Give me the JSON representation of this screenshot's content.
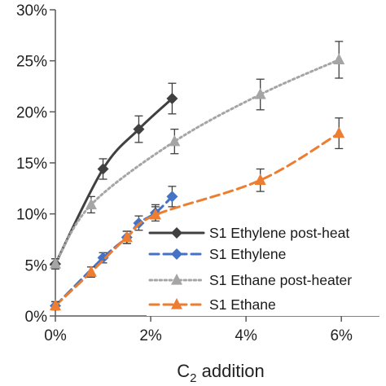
{
  "chart_data": {
    "type": "line",
    "title": "",
    "xlabel": "C",
    "xlabel_subscript": "2",
    "xlabel_suffix": " addition",
    "ylabel": "",
    "xlim": [
      0,
      6.8
    ],
    "ylim": [
      0,
      30
    ],
    "x_ticks": [
      0,
      2,
      4,
      6
    ],
    "x_tick_labels": [
      "0%",
      "2%",
      "4%",
      "6%"
    ],
    "y_ticks": [
      0,
      5,
      10,
      15,
      20,
      25,
      30
    ],
    "y_tick_labels": [
      "0%",
      "5%",
      "10%",
      "15%",
      "20%",
      "25%",
      "30%"
    ],
    "grid": false,
    "legend_position": "right",
    "series": [
      {
        "name": "S1 Ethylene post-heat",
        "color": "#404040",
        "line_style": "solid",
        "marker": "diamond",
        "x": [
          0,
          1.0,
          1.75,
          2.45
        ],
        "y": [
          5.1,
          14.4,
          18.3,
          21.3
        ],
        "err": [
          0.5,
          1.0,
          1.3,
          1.5
        ]
      },
      {
        "name": "S1 Ethylene",
        "color": "#4472c4",
        "line_style": "dashed",
        "marker": "diamond",
        "x": [
          0,
          1.0,
          1.5,
          1.75,
          2.1,
          2.45
        ],
        "y": [
          1.0,
          5.7,
          7.7,
          9.1,
          10.1,
          11.7
        ],
        "err": [
          0.4,
          0.5,
          0.6,
          0.7,
          0.8,
          1.0
        ]
      },
      {
        "name": "S1 Ethane post-heater",
        "color": "#a5a5a5",
        "line_style": "dotted",
        "marker": "triangle",
        "x": [
          0,
          0.75,
          2.5,
          4.3,
          5.95
        ],
        "y": [
          5.1,
          10.9,
          17.1,
          21.7,
          25.1
        ],
        "err": [
          0.5,
          0.8,
          1.2,
          1.5,
          1.8
        ]
      },
      {
        "name": "S1 Ethane",
        "color": "#ed7d31",
        "line_style": "dashed",
        "marker": "triangle",
        "x": [
          0,
          0.75,
          1.5,
          2.1,
          4.3,
          5.95
        ],
        "y": [
          1.0,
          4.3,
          7.7,
          9.9,
          13.3,
          17.9
        ],
        "err": [
          0.4,
          0.5,
          0.6,
          0.8,
          1.1,
          1.5
        ]
      }
    ]
  }
}
